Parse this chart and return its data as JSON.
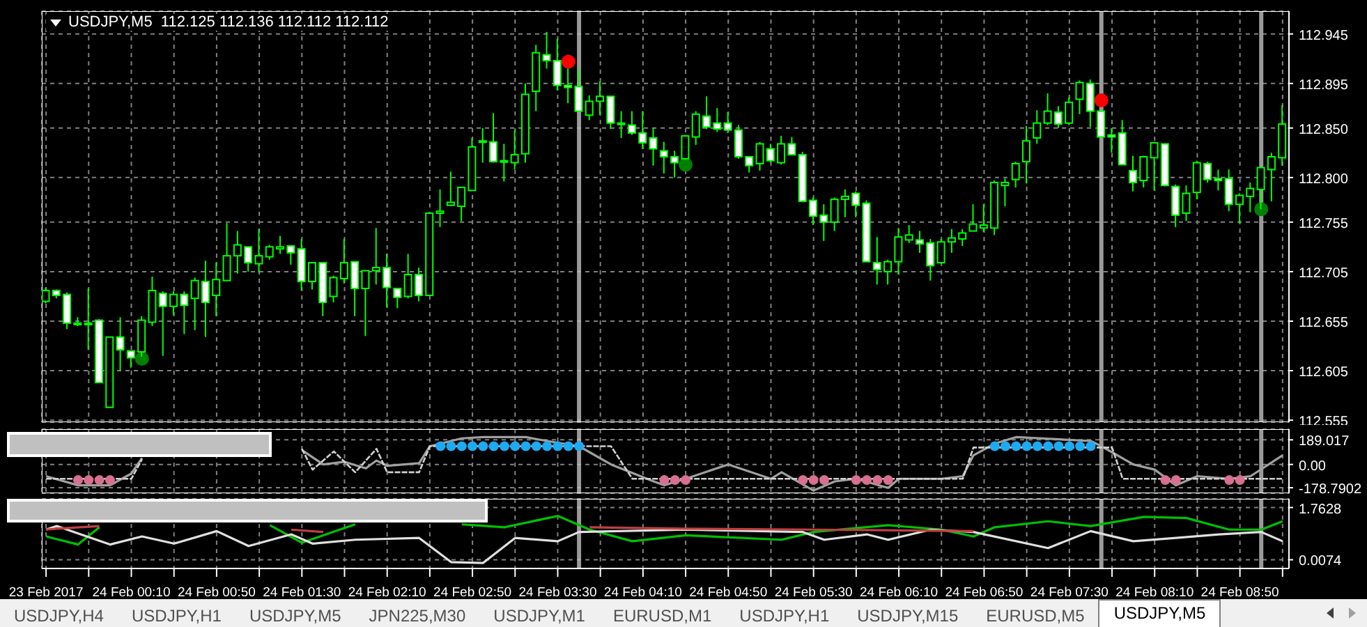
{
  "chart_data": [
    {
      "type": "candlestick",
      "title": "USDJPY,M5  112.125 112.136 112.112 112.112",
      "color": "#00ff00",
      "x": [
        "2017-02-23T23:30",
        "2017-02-23T23:35",
        "2017-02-23T23:40",
        "2017-02-23T23:45",
        "2017-02-23T23:50",
        "2017-02-23T23:55",
        "2017-02-24T00:00",
        "2017-02-24T00:05",
        "2017-02-24T00:10",
        "2017-02-24T00:15",
        "2017-02-24T00:20",
        "2017-02-24T00:25",
        "2017-02-24T00:30",
        "2017-02-24T00:35",
        "2017-02-24T00:40",
        "2017-02-24T00:45",
        "2017-02-24T00:50",
        "2017-02-24T00:55",
        "2017-02-24T01:00",
        "2017-02-24T01:05",
        "2017-02-24T01:10",
        "2017-02-24T01:15",
        "2017-02-24T01:20",
        "2017-02-24T01:25",
        "2017-02-24T01:30",
        "2017-02-24T01:35",
        "2017-02-24T01:40",
        "2017-02-24T01:45",
        "2017-02-24T01:50",
        "2017-02-24T01:55",
        "2017-02-24T02:00",
        "2017-02-24T02:05",
        "2017-02-24T02:10",
        "2017-02-24T02:15",
        "2017-02-24T02:20",
        "2017-02-24T02:25",
        "2017-02-24T02:30",
        "2017-02-24T02:35",
        "2017-02-24T02:40",
        "2017-02-24T02:45",
        "2017-02-24T02:50",
        "2017-02-24T02:55",
        "2017-02-24T03:00",
        "2017-02-24T03:05",
        "2017-02-24T03:10",
        "2017-02-24T03:15",
        "2017-02-24T03:20",
        "2017-02-24T03:25",
        "2017-02-24T03:30",
        "2017-02-24T03:35",
        "2017-02-24T03:40",
        "2017-02-24T03:45",
        "2017-02-24T03:50",
        "2017-02-24T03:55",
        "2017-02-24T04:00",
        "2017-02-24T04:05",
        "2017-02-24T04:10",
        "2017-02-24T04:15",
        "2017-02-24T04:20",
        "2017-02-24T04:25",
        "2017-02-24T04:30",
        "2017-02-24T04:35",
        "2017-02-24T04:40",
        "2017-02-24T04:45",
        "2017-02-24T04:50",
        "2017-02-24T04:55",
        "2017-02-24T05:00",
        "2017-02-24T05:05",
        "2017-02-24T05:10",
        "2017-02-24T05:15",
        "2017-02-24T05:20",
        "2017-02-24T05:25",
        "2017-02-24T05:30",
        "2017-02-24T05:35",
        "2017-02-24T05:40",
        "2017-02-24T05:45",
        "2017-02-24T05:50",
        "2017-02-24T05:55",
        "2017-02-24T06:00",
        "2017-02-24T06:05",
        "2017-02-24T06:10",
        "2017-02-24T06:15",
        "2017-02-24T06:20",
        "2017-02-24T06:25",
        "2017-02-24T06:30",
        "2017-02-24T06:35",
        "2017-02-24T06:40",
        "2017-02-24T06:45",
        "2017-02-24T06:50",
        "2017-02-24T06:55",
        "2017-02-24T07:00",
        "2017-02-24T07:05",
        "2017-02-24T07:10",
        "2017-02-24T07:15",
        "2017-02-24T07:20",
        "2017-02-24T07:25",
        "2017-02-24T07:30",
        "2017-02-24T07:35",
        "2017-02-24T07:40",
        "2017-02-24T07:45",
        "2017-02-24T07:50",
        "2017-02-24T07:55",
        "2017-02-24T08:00",
        "2017-02-24T08:05",
        "2017-02-24T08:10",
        "2017-02-24T08:15",
        "2017-02-24T08:20",
        "2017-02-24T08:25",
        "2017-02-24T08:30",
        "2017-02-24T08:35",
        "2017-02-24T08:40",
        "2017-02-24T08:45",
        "2017-02-24T08:50",
        "2017-02-24T08:55",
        "2017-02-24T09:00",
        "2017-02-24T09:05",
        "2017-02-24T09:10"
      ],
      "ohlc": [
        [
          112.675,
          112.689,
          112.673,
          112.686
        ],
        [
          112.686,
          112.687,
          112.678,
          112.681
        ],
        [
          112.682,
          112.684,
          112.647,
          112.653
        ],
        [
          112.653,
          112.659,
          112.65,
          112.652
        ],
        [
          112.653,
          112.688,
          112.626,
          112.652
        ],
        [
          112.656,
          112.657,
          112.593,
          112.593
        ],
        [
          112.568,
          112.639,
          112.568,
          112.639
        ],
        [
          112.639,
          112.659,
          112.605,
          112.626
        ],
        [
          112.625,
          112.625,
          112.608,
          112.618
        ],
        [
          112.624,
          112.66,
          112.619,
          112.656
        ],
        [
          112.654,
          112.7,
          112.65,
          112.686
        ],
        [
          112.683,
          112.685,
          112.62,
          112.67
        ],
        [
          112.67,
          112.685,
          112.661,
          112.682
        ],
        [
          112.682,
          112.685,
          112.642,
          112.671
        ],
        [
          112.678,
          112.699,
          112.646,
          112.696
        ],
        [
          112.695,
          112.716,
          112.639,
          112.674
        ],
        [
          112.681,
          112.714,
          112.66,
          112.697
        ],
        [
          112.696,
          112.754,
          112.696,
          112.721
        ],
        [
          112.721,
          112.746,
          112.703,
          112.732
        ],
        [
          112.73,
          112.73,
          112.705,
          112.714
        ],
        [
          112.713,
          112.748,
          112.704,
          112.721
        ],
        [
          112.72,
          112.732,
          112.717,
          112.73
        ],
        [
          112.728,
          112.741,
          112.723,
          112.73
        ],
        [
          112.731,
          112.731,
          112.712,
          112.724
        ],
        [
          112.728,
          112.738,
          112.686,
          112.695
        ],
        [
          112.695,
          112.714,
          112.687,
          112.714
        ],
        [
          112.714,
          112.714,
          112.66,
          112.674
        ],
        [
          112.68,
          112.701,
          112.674,
          112.699
        ],
        [
          112.698,
          112.738,
          112.693,
          112.714
        ],
        [
          112.715,
          112.715,
          112.66,
          112.688
        ],
        [
          112.688,
          112.706,
          112.64,
          112.706
        ],
        [
          112.706,
          112.749,
          112.692,
          112.709
        ],
        [
          112.709,
          112.723,
          112.669,
          112.689
        ],
        [
          112.688,
          112.688,
          112.668,
          112.679
        ],
        [
          112.68,
          112.723,
          112.678,
          112.702
        ],
        [
          112.702,
          112.709,
          112.675,
          112.681
        ],
        [
          112.681,
          112.765,
          112.681,
          112.764
        ],
        [
          112.764,
          112.788,
          112.75,
          112.766
        ],
        [
          112.772,
          112.806,
          112.771,
          112.775
        ],
        [
          112.771,
          112.79,
          112.756,
          112.79
        ],
        [
          112.787,
          112.84,
          112.787,
          112.831
        ],
        [
          112.836,
          112.85,
          112.815,
          112.837
        ],
        [
          112.836,
          112.865,
          112.815,
          112.816
        ],
        [
          112.816,
          112.834,
          112.796,
          112.817
        ],
        [
          112.815,
          112.848,
          112.808,
          112.823
        ],
        [
          112.824,
          112.895,
          112.815,
          112.884
        ],
        [
          112.887,
          112.934,
          112.867,
          112.926
        ],
        [
          112.924,
          112.947,
          112.91,
          112.918
        ],
        [
          112.918,
          112.94,
          112.888,
          112.893
        ],
        [
          112.893,
          112.91,
          112.875,
          112.891
        ],
        [
          112.892,
          112.91,
          112.867,
          112.867
        ],
        [
          112.863,
          112.883,
          112.858,
          112.877
        ],
        [
          112.877,
          112.897,
          112.863,
          112.882
        ],
        [
          112.882,
          112.882,
          112.849,
          112.855
        ],
        [
          112.855,
          112.867,
          112.84,
          112.854
        ],
        [
          112.853,
          112.867,
          112.843,
          112.845
        ],
        [
          112.845,
          112.867,
          112.829,
          112.835
        ],
        [
          112.84,
          112.85,
          112.812,
          112.829
        ],
        [
          112.827,
          112.836,
          112.804,
          112.821
        ],
        [
          112.821,
          112.827,
          112.8,
          112.815
        ],
        [
          112.819,
          112.843,
          112.818,
          112.842
        ],
        [
          112.841,
          112.867,
          112.833,
          112.864
        ],
        [
          112.862,
          112.882,
          112.849,
          112.851
        ],
        [
          112.855,
          112.87,
          112.846,
          112.849
        ],
        [
          112.855,
          112.866,
          112.845,
          112.848
        ],
        [
          112.848,
          112.853,
          112.819,
          112.821
        ],
        [
          112.821,
          112.821,
          112.805,
          112.812
        ],
        [
          112.814,
          112.836,
          112.807,
          112.834
        ],
        [
          112.829,
          112.834,
          112.815,
          112.817
        ],
        [
          112.815,
          112.842,
          112.813,
          112.834
        ],
        [
          112.834,
          112.841,
          112.823,
          112.823
        ],
        [
          112.823,
          112.826,
          112.775,
          112.776
        ],
        [
          112.777,
          112.78,
          112.752,
          112.761
        ],
        [
          112.762,
          112.773,
          112.736,
          112.755
        ],
        [
          112.755,
          112.78,
          112.746,
          112.778
        ],
        [
          112.778,
          112.788,
          112.76,
          112.781
        ],
        [
          112.784,
          112.786,
          112.76,
          112.772
        ],
        [
          112.774,
          112.777,
          112.715,
          112.715
        ],
        [
          112.714,
          112.74,
          112.692,
          112.707
        ],
        [
          112.705,
          112.717,
          112.692,
          112.715
        ],
        [
          112.715,
          112.749,
          112.702,
          112.74
        ],
        [
          112.737,
          112.752,
          112.734,
          112.742
        ],
        [
          112.737,
          112.746,
          112.724,
          112.733
        ],
        [
          112.734,
          112.738,
          112.696,
          112.711
        ],
        [
          112.714,
          112.738,
          112.713,
          112.735
        ],
        [
          112.735,
          112.748,
          112.724,
          112.739
        ],
        [
          112.738,
          112.748,
          112.731,
          112.744
        ],
        [
          112.746,
          112.773,
          112.746,
          112.753
        ],
        [
          112.749,
          112.773,
          112.745,
          112.752
        ],
        [
          112.749,
          112.797,
          112.742,
          112.795
        ],
        [
          112.792,
          112.799,
          112.771,
          112.795
        ],
        [
          112.798,
          112.816,
          112.79,
          112.814
        ],
        [
          112.816,
          112.852,
          112.794,
          112.837
        ],
        [
          112.84,
          112.868,
          112.834,
          112.855
        ],
        [
          112.855,
          112.885,
          112.853,
          112.867
        ],
        [
          112.866,
          112.872,
          112.85,
          112.854
        ],
        [
          112.855,
          112.881,
          112.853,
          112.876
        ],
        [
          112.879,
          112.898,
          112.864,
          112.896
        ],
        [
          112.895,
          112.899,
          112.851,
          112.867
        ],
        [
          112.867,
          112.867,
          112.841,
          112.841
        ],
        [
          112.843,
          112.85,
          112.825,
          112.841
        ],
        [
          112.845,
          112.858,
          112.813,
          112.813
        ],
        [
          112.807,
          112.822,
          112.786,
          112.795
        ],
        [
          112.797,
          112.822,
          112.79,
          112.821
        ],
        [
          112.82,
          112.836,
          112.787,
          112.835
        ],
        [
          112.834,
          112.834,
          112.791,
          112.792
        ],
        [
          112.791,
          112.793,
          112.75,
          112.762
        ],
        [
          112.764,
          112.792,
          112.756,
          112.784
        ],
        [
          112.785,
          112.817,
          112.778,
          112.815
        ],
        [
          112.814,
          112.816,
          112.795,
          112.798
        ],
        [
          112.799,
          112.808,
          112.787,
          112.797
        ],
        [
          112.799,
          112.808,
          112.766,
          112.773
        ],
        [
          112.773,
          112.784,
          112.754,
          112.782
        ],
        [
          112.781,
          112.795,
          112.765,
          112.789
        ],
        [
          112.788,
          112.811,
          112.768,
          112.81
        ],
        [
          112.808,
          112.825,
          112.776,
          112.821
        ],
        [
          112.82,
          112.873,
          112.812,
          112.854
        ]
      ],
      "series": [
        {
          "type": "scatter",
          "marker": "circle",
          "color": "#ff0000",
          "x": [
            "2017-02-24T03:35",
            "2017-02-24T07:45"
          ],
          "values": [
            112.917,
            112.878
          ]
        },
        {
          "type": "scatter",
          "marker": "circle",
          "color": "#008000",
          "x": [
            "2017-02-24T00:15",
            "2017-02-24T04:30",
            "2017-02-24T09:00"
          ],
          "values": [
            112.617,
            112.813,
            112.768
          ]
        }
      ],
      "xlim": [
        "2017-02-23T23:28",
        "2017-02-24T09:13"
      ],
      "xticks": [
        {
          "value": "2017-02-23T23:30",
          "label": null
        },
        {
          "value": "2017-02-23T23:50",
          "label": null
        },
        {
          "value": "2017-02-24T00:10",
          "label": null
        },
        {
          "value": "2017-02-24T00:30",
          "label": null
        },
        {
          "value": "2017-02-24T00:50",
          "label": null
        },
        {
          "value": "2017-02-24T01:10",
          "label": null
        },
        {
          "value": "2017-02-24T01:30",
          "label": null
        },
        {
          "value": "2017-02-24T01:50",
          "label": null
        },
        {
          "value": "2017-02-24T02:10",
          "label": null
        },
        {
          "value": "2017-02-24T02:30",
          "label": null
        },
        {
          "value": "2017-02-24T02:50",
          "label": null
        },
        {
          "value": "2017-02-24T03:10",
          "label": null
        },
        {
          "value": "2017-02-24T03:30",
          "label": null
        },
        {
          "value": "2017-02-24T03:50",
          "label": null
        },
        {
          "value": "2017-02-24T04:10",
          "label": null
        },
        {
          "value": "2017-02-24T04:30",
          "label": null
        },
        {
          "value": "2017-02-24T04:50",
          "label": null
        },
        {
          "value": "2017-02-24T05:10",
          "label": null
        },
        {
          "value": "2017-02-24T05:30",
          "label": null
        },
        {
          "value": "2017-02-24T05:50",
          "label": null
        },
        {
          "value": "2017-02-24T06:10",
          "label": null
        },
        {
          "value": "2017-02-24T06:30",
          "label": null
        },
        {
          "value": "2017-02-24T06:50",
          "label": null
        },
        {
          "value": "2017-02-24T07:10",
          "label": null
        },
        {
          "value": "2017-02-24T07:30",
          "label": null
        },
        {
          "value": "2017-02-24T07:50",
          "label": null
        },
        {
          "value": "2017-02-24T08:10",
          "label": null
        },
        {
          "value": "2017-02-24T08:30",
          "label": null
        },
        {
          "value": "2017-02-24T08:50",
          "label": null
        },
        {
          "value": "2017-02-24T09:10",
          "label": null
        }
      ],
      "ylim": [
        112.553,
        112.968
      ],
      "yticks": [
        112.555,
        112.605,
        112.655,
        112.705,
        112.755,
        {
          "value": 112.8,
          "label": "112.800"
        },
        {
          "value": 112.85,
          "label": "112.850"
        },
        112.895,
        112.945
      ],
      "grid": true,
      "tick_labels": "y",
      "ref_lines": [
        {
          "axis": "x",
          "value": "2017-02-24T03:40",
          "color": "#c0c0c0"
        },
        {
          "axis": "x",
          "value": "2017-02-24T07:45",
          "color": "#c0c0c0"
        },
        {
          "axis": "x",
          "value": "2017-02-24T09:00",
          "color": "#c0c0c0"
        }
      ]
    },
    {
      "type": "line",
      "series": [
        {
          "color": "#a0a0a0",
          "x": [
            "2017-02-23T23:30",
            "2017-02-23T23:45",
            "2017-02-24T00:00",
            "2017-02-24T00:10",
            "2017-02-24T00:15",
            "2017-02-24T00:20",
            "2017-02-24T01:30",
            "2017-02-24T01:40",
            "2017-02-24T01:50",
            "2017-02-24T02:00",
            "2017-02-24T02:05",
            "2017-02-24T02:10",
            "2017-02-24T02:25",
            "2017-02-24T02:30",
            "2017-02-24T02:45",
            "2017-02-24T02:55",
            "2017-02-24T03:15",
            "2017-02-24T03:25",
            "2017-02-24T03:40",
            "2017-02-24T03:55",
            "2017-02-24T04:15",
            "2017-02-24T04:20",
            "2017-02-24T04:30",
            "2017-02-24T04:50",
            "2017-02-24T05:10",
            "2017-02-24T05:15",
            "2017-02-24T05:30",
            "2017-02-24T05:40",
            "2017-02-24T05:50",
            "2017-02-24T06:05",
            "2017-02-24T06:10",
            "2017-02-24T06:30",
            "2017-02-24T06:40",
            "2017-02-24T06:45",
            "2017-02-24T06:55",
            "2017-02-24T07:05",
            "2017-02-24T07:40",
            "2017-02-24T07:45",
            "2017-02-24T08:00",
            "2017-02-24T08:10",
            "2017-02-24T08:20",
            "2017-02-24T08:30",
            "2017-02-24T08:45",
            "2017-02-24T08:55",
            "2017-02-24T09:10"
          ],
          "values": [
            -90,
            -160,
            -160,
            -70,
            50,
            null,
            110,
            0,
            20,
            -30,
            30,
            -10,
            10,
            140,
            200,
            210,
            210,
            180,
            140,
            0,
            -130,
            -160,
            -110,
            0,
            -110,
            -60,
            -200,
            -130,
            -110,
            -180,
            -110,
            -110,
            -90,
            70,
            160,
            210,
            180,
            140,
            0,
            -40,
            -160,
            -90,
            -110,
            -90,
            70
          ]
        },
        {
          "color": "#d0d0d0",
          "line_style": "dashed",
          "x": [
            "2017-02-23T23:30",
            "2017-02-24T00:10",
            "2017-02-24T00:15",
            "2017-02-24T00:20",
            "2017-02-24T01:30",
            "2017-02-24T01:35",
            "2017-02-24T01:45",
            "2017-02-24T01:55",
            "2017-02-24T02:05",
            "2017-02-24T02:10",
            "2017-02-24T02:25",
            "2017-02-24T02:30",
            "2017-02-24T03:55",
            "2017-02-24T04:05",
            "2017-02-24T06:40",
            "2017-02-24T06:45",
            "2017-02-24T07:50",
            "2017-02-24T07:55",
            "2017-02-24T09:10"
          ],
          "values": [
            -110,
            -110,
            40,
            null,
            120,
            -40,
            100,
            -60,
            120,
            -60,
            -60,
            140,
            140,
            -110,
            -110,
            130,
            130,
            -110,
            -110
          ]
        },
        {
          "type": "scatter",
          "marker": "circle",
          "color": "#1eaaf0",
          "x": [
            "2017-02-24T02:35",
            "2017-02-24T02:40",
            "2017-02-24T02:45",
            "2017-02-24T02:50",
            "2017-02-24T02:55",
            "2017-02-24T03:00",
            "2017-02-24T03:05",
            "2017-02-24T03:10",
            "2017-02-24T03:15",
            "2017-02-24T03:20",
            "2017-02-24T03:25",
            "2017-02-24T03:30",
            "2017-02-24T03:35",
            "2017-02-24T03:40",
            "2017-02-24T06:55",
            "2017-02-24T07:00",
            "2017-02-24T07:05",
            "2017-02-24T07:10",
            "2017-02-24T07:15",
            "2017-02-24T07:20",
            "2017-02-24T07:25",
            "2017-02-24T07:30",
            "2017-02-24T07:35",
            "2017-02-24T07:40"
          ],
          "values": [
            140,
            140,
            140,
            140,
            140,
            140,
            140,
            140,
            140,
            140,
            140,
            140,
            140,
            140,
            140,
            140,
            140,
            140,
            140,
            140,
            140,
            140,
            140,
            140
          ]
        },
        {
          "type": "scatter",
          "marker": "circle",
          "color": "#d87090",
          "x": [
            "2017-02-23T23:45",
            "2017-02-23T23:50",
            "2017-02-23T23:55",
            "2017-02-24T00:00",
            "2017-02-24T04:20",
            "2017-02-24T04:25",
            "2017-02-24T04:30",
            "2017-02-24T05:25",
            "2017-02-24T05:30",
            "2017-02-24T05:35",
            "2017-02-24T05:50",
            "2017-02-24T05:55",
            "2017-02-24T06:00",
            "2017-02-24T06:05",
            "2017-02-24T08:15",
            "2017-02-24T08:20",
            "2017-02-24T08:45",
            "2017-02-24T08:50"
          ],
          "values": [
            -120,
            -120,
            -120,
            -120,
            -120,
            -120,
            -120,
            -120,
            -120,
            -120,
            -120,
            -120,
            -120,
            -120,
            -120,
            -120,
            -120,
            -120
          ]
        }
      ],
      "xlim": [
        "2017-02-23T23:28",
        "2017-02-24T09:13"
      ],
      "xticks": [
        {
          "value": "2017-02-23T23:30",
          "label": null
        },
        {
          "value": "2017-02-23T23:50",
          "label": null
        },
        {
          "value": "2017-02-24T00:10",
          "label": null
        },
        {
          "value": "2017-02-24T00:30",
          "label": null
        },
        {
          "value": "2017-02-24T00:50",
          "label": null
        },
        {
          "value": "2017-02-24T01:10",
          "label": null
        },
        {
          "value": "2017-02-24T01:30",
          "label": null
        },
        {
          "value": "2017-02-24T01:50",
          "label": null
        },
        {
          "value": "2017-02-24T02:10",
          "label": null
        },
        {
          "value": "2017-02-24T02:30",
          "label": null
        },
        {
          "value": "2017-02-24T02:50",
          "label": null
        },
        {
          "value": "2017-02-24T03:10",
          "label": null
        },
        {
          "value": "2017-02-24T03:30",
          "label": null
        },
        {
          "value": "2017-02-24T03:50",
          "label": null
        },
        {
          "value": "2017-02-24T04:10",
          "label": null
        },
        {
          "value": "2017-02-24T04:30",
          "label": null
        },
        {
          "value": "2017-02-24T04:50",
          "label": null
        },
        {
          "value": "2017-02-24T05:10",
          "label": null
        },
        {
          "value": "2017-02-24T05:30",
          "label": null
        },
        {
          "value": "2017-02-24T05:50",
          "label": null
        },
        {
          "value": "2017-02-24T06:10",
          "label": null
        },
        {
          "value": "2017-02-24T06:30",
          "label": null
        },
        {
          "value": "2017-02-24T06:50",
          "label": null
        },
        {
          "value": "2017-02-24T07:10",
          "label": null
        },
        {
          "value": "2017-02-24T07:30",
          "label": null
        },
        {
          "value": "2017-02-24T07:50",
          "label": null
        },
        {
          "value": "2017-02-24T08:10",
          "label": null
        },
        {
          "value": "2017-02-24T08:30",
          "label": null
        },
        {
          "value": "2017-02-24T08:50",
          "label": null
        },
        {
          "value": "2017-02-24T09:10",
          "label": null
        }
      ],
      "ylim": [
        -221,
        271
      ],
      "yticks": [
        189.017,
        {
          "value": 0,
          "label": "0.00"
        },
        -178.7902
      ],
      "grid": true,
      "tick_labels": "y",
      "ref_lines": [
        {
          "axis": "x",
          "value": "2017-02-24T03:40",
          "color": "#c0c0c0"
        },
        {
          "axis": "x",
          "value": "2017-02-24T07:45",
          "color": "#c0c0c0"
        },
        {
          "axis": "x",
          "value": "2017-02-24T09:00",
          "color": "#c0c0c0"
        }
      ]
    },
    {
      "type": "line",
      "series": [
        {
          "color": "#00c000",
          "x": [
            "2017-02-23T23:30",
            "2017-02-23T23:45",
            "2017-02-23T23:55",
            "2017-02-24T00:00",
            "2017-02-24T01:15",
            "2017-02-24T01:30",
            "2017-02-24T01:55",
            "2017-02-24T02:00",
            "2017-02-24T02:45",
            "2017-02-24T03:05",
            "2017-02-24T03:30",
            "2017-02-24T03:45",
            "2017-02-24T04:05",
            "2017-02-24T04:30",
            "2017-02-24T05:15",
            "2017-02-24T05:30",
            "2017-02-24T06:05",
            "2017-02-24T06:30",
            "2017-02-24T06:45",
            "2017-02-24T06:55",
            "2017-02-24T07:20",
            "2017-02-24T07:40",
            "2017-02-24T08:05",
            "2017-02-24T08:25",
            "2017-02-24T08:45",
            "2017-02-24T09:00",
            "2017-02-24T09:10"
          ],
          "values": [
            0.79,
            0.52,
            1.1,
            null,
            1.17,
            0.58,
            1.2,
            null,
            1.2,
            1.1,
            1.48,
            1.02,
            0.63,
            0.83,
            0.68,
            0.94,
            1.17,
            1.02,
            0.79,
            1.1,
            1.3,
            1.14,
            1.45,
            1.41,
            1.02,
            1.02,
            1.3
          ]
        },
        {
          "color": "#e0e0e0",
          "x": [
            "2017-02-23T23:30",
            "2017-02-23T23:35",
            "2017-02-24T00:00",
            "2017-02-24T00:15",
            "2017-02-24T00:30",
            "2017-02-24T00:50",
            "2017-02-24T01:05",
            "2017-02-24T01:25",
            "2017-02-24T01:35",
            "2017-02-24T01:55",
            "2017-02-24T02:25",
            "2017-02-24T02:40",
            "2017-02-24T02:55",
            "2017-02-24T03:10",
            "2017-02-24T03:30",
            "2017-02-24T03:40",
            "2017-02-24T04:30",
            "2017-02-24T05:25",
            "2017-02-24T05:35",
            "2017-02-24T05:55",
            "2017-02-24T06:05",
            "2017-02-24T06:25",
            "2017-02-24T06:45",
            "2017-02-24T07:20",
            "2017-02-24T07:40",
            "2017-02-24T08:00",
            "2017-02-24T08:20",
            "2017-02-24T08:40",
            "2017-02-24T09:00",
            "2017-02-24T09:10"
          ],
          "values": [
            1.02,
            1.14,
            0.52,
            0.79,
            0.55,
            0.97,
            0.47,
            0.86,
            0.55,
            0.68,
            0.74,
            -0.07,
            -0.1,
            0.74,
            0.63,
            0.94,
            1.02,
            0.94,
            0.68,
            0.86,
            0.68,
            1.02,
            0.94,
            0.4,
            0.97,
            0.63,
            0.74,
            0.86,
            0.94,
            0.63
          ]
        },
        {
          "color": "#c04040",
          "x": [
            "2017-02-23T23:30",
            "2017-02-23T23:35",
            "2017-02-23T23:55",
            "2017-02-24T00:00",
            "2017-02-24T01:25",
            "2017-02-24T01:40",
            "2017-02-24T01:45",
            "2017-02-24T03:45",
            "2017-02-24T04:30",
            "2017-02-24T05:30",
            "2017-02-24T06:45"
          ],
          "values": [
            1.02,
            1.05,
            1.14,
            null,
            1.02,
            0.94,
            null,
            1.1,
            1.05,
            1.02,
            0.97
          ]
        }
      ],
      "xlim": [
        "2017-02-23T23:28",
        "2017-02-24T09:13"
      ],
      "xticks": [
        {
          "value": "2017-02-23T23:30",
          "label": "23 Feb 2017"
        },
        {
          "value": "2017-02-23T23:50",
          "label": null
        },
        {
          "value": "2017-02-24T00:10",
          "label": "24 Feb 00:10"
        },
        {
          "value": "2017-02-24T00:30",
          "label": null
        },
        {
          "value": "2017-02-24T00:50",
          "label": "24 Feb 00:50"
        },
        {
          "value": "2017-02-24T01:10",
          "label": null
        },
        {
          "value": "2017-02-24T01:30",
          "label": "24 Feb 01:30"
        },
        {
          "value": "2017-02-24T01:50",
          "label": null
        },
        {
          "value": "2017-02-24T02:10",
          "label": "24 Feb 02:10"
        },
        {
          "value": "2017-02-24T02:30",
          "label": null
        },
        {
          "value": "2017-02-24T02:50",
          "label": "24 Feb 02:50"
        },
        {
          "value": "2017-02-24T03:10",
          "label": null
        },
        {
          "value": "2017-02-24T03:30",
          "label": "24 Feb 03:30"
        },
        {
          "value": "2017-02-24T03:50",
          "label": null
        },
        {
          "value": "2017-02-24T04:10",
          "label": "24 Feb 04:10"
        },
        {
          "value": "2017-02-24T04:30",
          "label": null
        },
        {
          "value": "2017-02-24T04:50",
          "label": "24 Feb 04:50"
        },
        {
          "value": "2017-02-24T05:10",
          "label": null
        },
        {
          "value": "2017-02-24T05:30",
          "label": "24 Feb 05:30"
        },
        {
          "value": "2017-02-24T05:50",
          "label": null
        },
        {
          "value": "2017-02-24T06:10",
          "label": "24 Feb 06:10"
        },
        {
          "value": "2017-02-24T06:30",
          "label": null
        },
        {
          "value": "2017-02-24T06:50",
          "label": "24 Feb 06:50"
        },
        {
          "value": "2017-02-24T07:10",
          "label": null
        },
        {
          "value": "2017-02-24T07:30",
          "label": "24 Feb 07:30"
        },
        {
          "value": "2017-02-24T07:50",
          "label": null
        },
        {
          "value": "2017-02-24T08:10",
          "label": "24 Feb 08:10"
        },
        {
          "value": "2017-02-24T08:30",
          "label": null
        },
        {
          "value": "2017-02-24T08:50",
          "label": "24 Feb 08:50"
        },
        {
          "value": "2017-02-24T09:10",
          "label": null
        }
      ],
      "ylim": [
        -0.286,
        2.056
      ],
      "yticks": [
        1.7628,
        0.0074
      ],
      "grid": true,
      "ref_lines": [
        {
          "axis": "x",
          "value": "2017-02-24T03:40",
          "color": "#c0c0c0"
        },
        {
          "axis": "x",
          "value": "2017-02-24T07:45",
          "color": "#c0c0c0"
        },
        {
          "axis": "x",
          "value": "2017-02-24T09:00",
          "color": "#c0c0c0"
        }
      ],
      "annotations": [
        "USDJPY,H4",
        "USDJPY,H1",
        "USDJPY,M5",
        "JPN225,M30",
        "USDJPY,M1",
        "EURUSD,M1",
        "USDJPY,H1",
        "USDJPY,M15",
        "EURUSD,M5",
        "USDJPY,M5"
      ]
    }
  ]
}
